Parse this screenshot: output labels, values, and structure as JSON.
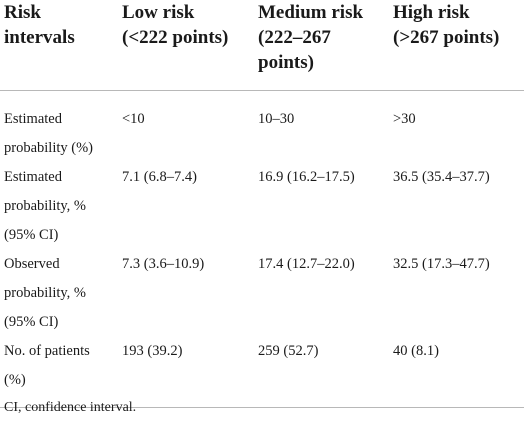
{
  "table": {
    "headers": [
      "Risk\nintervals",
      "Low risk\n(<222 points)",
      "Medium risk\n(222–267\npoints)",
      "High risk\n(>267 points)"
    ],
    "rows": [
      [
        "Estimated\nprobability (%)",
        "<10",
        "10–30",
        ">30"
      ],
      [
        "Estimated\nprobability, %\n(95% CI)",
        "7.1 (6.8–7.4)",
        "16.9 (16.2–17.5)",
        "36.5 (35.4–37.7)"
      ],
      [
        "Observed\nprobability, %\n(95% CI)",
        "7.3 (3.6–10.9)",
        "17.4 (12.7–22.0)",
        "32.5 (17.3–47.7)"
      ],
      [
        "No. of patients\n(%)",
        "193 (39.2)",
        "259 (52.7)",
        "40 (8.1)"
      ]
    ]
  },
  "footnote": "CI, confidence interval."
}
